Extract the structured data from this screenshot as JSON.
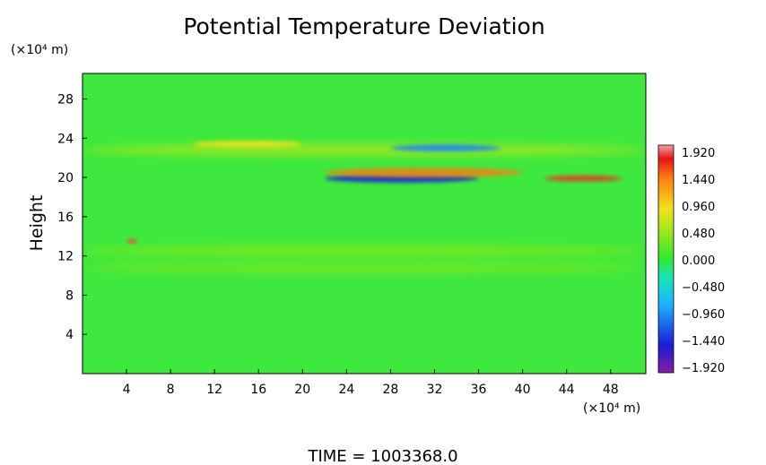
{
  "chart_data": {
    "type": "heatmap",
    "title": "Potential Temperature Deviation",
    "ylabel": "Height",
    "xunit": "(×10⁴ m)",
    "yunit": "(×10⁴ m)",
    "x_ticks": [
      "4",
      "8",
      "12",
      "16",
      "20",
      "24",
      "28",
      "32",
      "36",
      "40",
      "44",
      "48"
    ],
    "x_tick_values": [
      4,
      8,
      12,
      16,
      20,
      24,
      28,
      32,
      36,
      40,
      44,
      48
    ],
    "y_ticks": [
      "4",
      "8",
      "12",
      "16",
      "20",
      "24",
      "28"
    ],
    "y_tick_values": [
      4,
      8,
      12,
      16,
      20,
      24,
      28
    ],
    "xlim": [
      0,
      51.2
    ],
    "ylim": [
      0,
      30.6
    ],
    "colorbar": {
      "labels": [
        "1.920",
        "1.440",
        "0.960",
        "0.480",
        "0.000",
        "−0.480",
        "−0.960",
        "−1.440",
        "−1.920"
      ],
      "values": [
        1.92,
        1.44,
        0.96,
        0.48,
        0.0,
        -0.48,
        -0.96,
        -1.44,
        -1.92
      ],
      "range": [
        -1.92,
        1.92
      ]
    },
    "features": [
      {
        "x": [
          0,
          51.2
        ],
        "y": 22.8,
        "value": 0.55,
        "note": "warm band"
      },
      {
        "x": [
          10,
          20
        ],
        "y": 23.4,
        "value": 0.9,
        "note": "warm streak"
      },
      {
        "x": [
          22,
          36
        ],
        "y": 19.9,
        "value": -1.4,
        "note": "cold streak"
      },
      {
        "x": [
          22,
          40
        ],
        "y": 20.5,
        "value": 1.2,
        "note": "warm streak"
      },
      {
        "x": [
          28,
          38
        ],
        "y": 23.0,
        "value": -0.9,
        "note": "cold streak"
      },
      {
        "x": [
          42,
          49
        ],
        "y": 19.9,
        "value": 1.5,
        "note": "warm streak"
      },
      {
        "x": [
          0,
          51.2
        ],
        "y": 12.5,
        "value": 0.35,
        "note": "weak warm band"
      },
      {
        "x": [
          0,
          51.2
        ],
        "y": 10.8,
        "value": 0.3,
        "note": "weak warm band"
      },
      {
        "x": [
          4,
          5
        ],
        "y": 13.5,
        "value": 1.6,
        "note": "warm spot"
      }
    ]
  },
  "footer": {
    "time_label": "TIME  =  1003368.0"
  }
}
